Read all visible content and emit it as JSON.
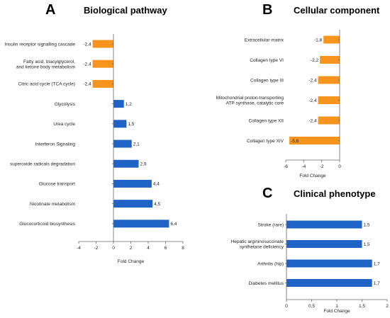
{
  "colors": {
    "positive": "#1f63c6",
    "negative": "#f7941d"
  },
  "chart_data": [
    {
      "type": "bar",
      "orientation": "horizontal",
      "letter": "A",
      "title": "Biological pathway",
      "xlabel": "Fold Change",
      "xlim": [
        -4,
        8
      ],
      "xticks": [
        "-4",
        "-2",
        "0",
        "2",
        "4",
        "6",
        "8"
      ],
      "xtick_values": [
        -4,
        -2,
        0,
        2,
        4,
        6,
        8
      ],
      "categories": [
        [
          "Insulin receptor signalling cascade"
        ],
        [
          "Fatty acid, triacylglycerol,",
          "and ketone body metabolism"
        ],
        [
          "Citric acid cycle (TCA cycle)"
        ],
        [
          "Glycolysis"
        ],
        [
          "Urea cycle"
        ],
        [
          "Interferon Signaling"
        ],
        [
          "superoxide radicals degradation"
        ],
        [
          "Glucose transport"
        ],
        [
          "Nicotinate metabolism"
        ],
        [
          "Glucocorticoid biosynthesis"
        ]
      ],
      "values": [
        -2.4,
        -2.4,
        -2.4,
        1.2,
        1.5,
        2.1,
        2.9,
        4.4,
        4.5,
        6.4
      ],
      "value_labels": [
        "-2,4",
        "-2,4",
        "-2,4",
        "1,2",
        "1,5",
        "2,1",
        "2,9",
        "4,4",
        "4,5",
        "6,4"
      ]
    },
    {
      "type": "bar",
      "orientation": "horizontal",
      "letter": "B",
      "title": "Cellular component",
      "xlabel": "Fold Change",
      "xlim": [
        -6,
        0
      ],
      "xticks": [
        "-6",
        "-4",
        "-2",
        "0"
      ],
      "xtick_values": [
        -6,
        -4,
        -2,
        0
      ],
      "categories": [
        [
          "Extracellular matrix"
        ],
        [
          "Collagen type VI"
        ],
        [
          "Collagen type III"
        ],
        [
          "Mitochondrial proton-transporting",
          "ATP synthase, catalytic core"
        ],
        [
          "Collagen type XII"
        ],
        [
          "Collagen type XIV"
        ]
      ],
      "values": [
        -1.8,
        -2.2,
        -2.4,
        -2.4,
        -2.4,
        -5.6
      ],
      "value_labels": [
        "-1,8",
        "-2,2",
        "-2,4",
        "-2,4",
        "-2,4",
        "-5,6"
      ]
    },
    {
      "type": "bar",
      "orientation": "horizontal",
      "letter": "C",
      "title": "Clinical phenotype",
      "xlabel": "Fold Change",
      "xlim": [
        0,
        2
      ],
      "xticks": [
        "0",
        "0,5",
        "1",
        "1,5",
        "2"
      ],
      "xtick_values": [
        0,
        0.5,
        1,
        1.5,
        2
      ],
      "categories": [
        [
          "Stroke (rare)"
        ],
        [
          "Hepatic argininosuccinate",
          "synthetase deficiency"
        ],
        [
          "Arthritis (hip)"
        ],
        [
          "Diabetes mellitus"
        ]
      ],
      "values": [
        1.5,
        1.5,
        1.7,
        1.7
      ],
      "value_labels": [
        "1,5",
        "1,5",
        "1,7",
        "1,7"
      ]
    }
  ]
}
